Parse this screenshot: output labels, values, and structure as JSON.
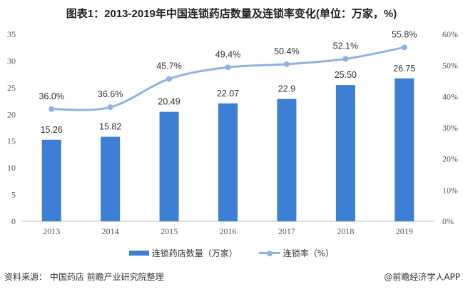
{
  "title": "图表1：2013-2019年中国连锁药店数量及连锁率变化(单位：万家，%)",
  "chart_data": {
    "type": "bar",
    "categories": [
      "2013",
      "2014",
      "2015",
      "2016",
      "2017",
      "2018",
      "2019"
    ],
    "series": [
      {
        "name": "连锁药店数量（万家）",
        "type": "bar",
        "axis": "left",
        "values": [
          15.26,
          15.82,
          20.49,
          22.07,
          22.9,
          25.5,
          26.75
        ],
        "labels": [
          "15.26",
          "15.82",
          "20.49",
          "22.07",
          "22.9",
          "25.50",
          "26.75"
        ],
        "color": "#3e7fd6"
      },
      {
        "name": "连锁率（%）",
        "type": "line",
        "axis": "right",
        "values": [
          36.0,
          36.6,
          45.7,
          49.4,
          50.4,
          52.1,
          55.8
        ],
        "labels": [
          "36.0%",
          "36.6%",
          "45.7%",
          "49.4%",
          "50.4%",
          "52.1%",
          "55.8%"
        ],
        "color": "#8fb3e3"
      }
    ],
    "left_axis": {
      "ylim": [
        0,
        35
      ],
      "ticks": [
        "0",
        "5",
        "10",
        "15",
        "20",
        "25",
        "30",
        "35"
      ]
    },
    "right_axis": {
      "ylim": [
        0,
        60
      ],
      "ticks": [
        "0%",
        "10%",
        "20%",
        "30%",
        "40%",
        "50%",
        "60%"
      ]
    },
    "legend_position": "bottom"
  },
  "footer": {
    "source": "资料来源： 中国药店 前瞻产业研究院整理",
    "credit": "@前瞻经济学人APP"
  }
}
